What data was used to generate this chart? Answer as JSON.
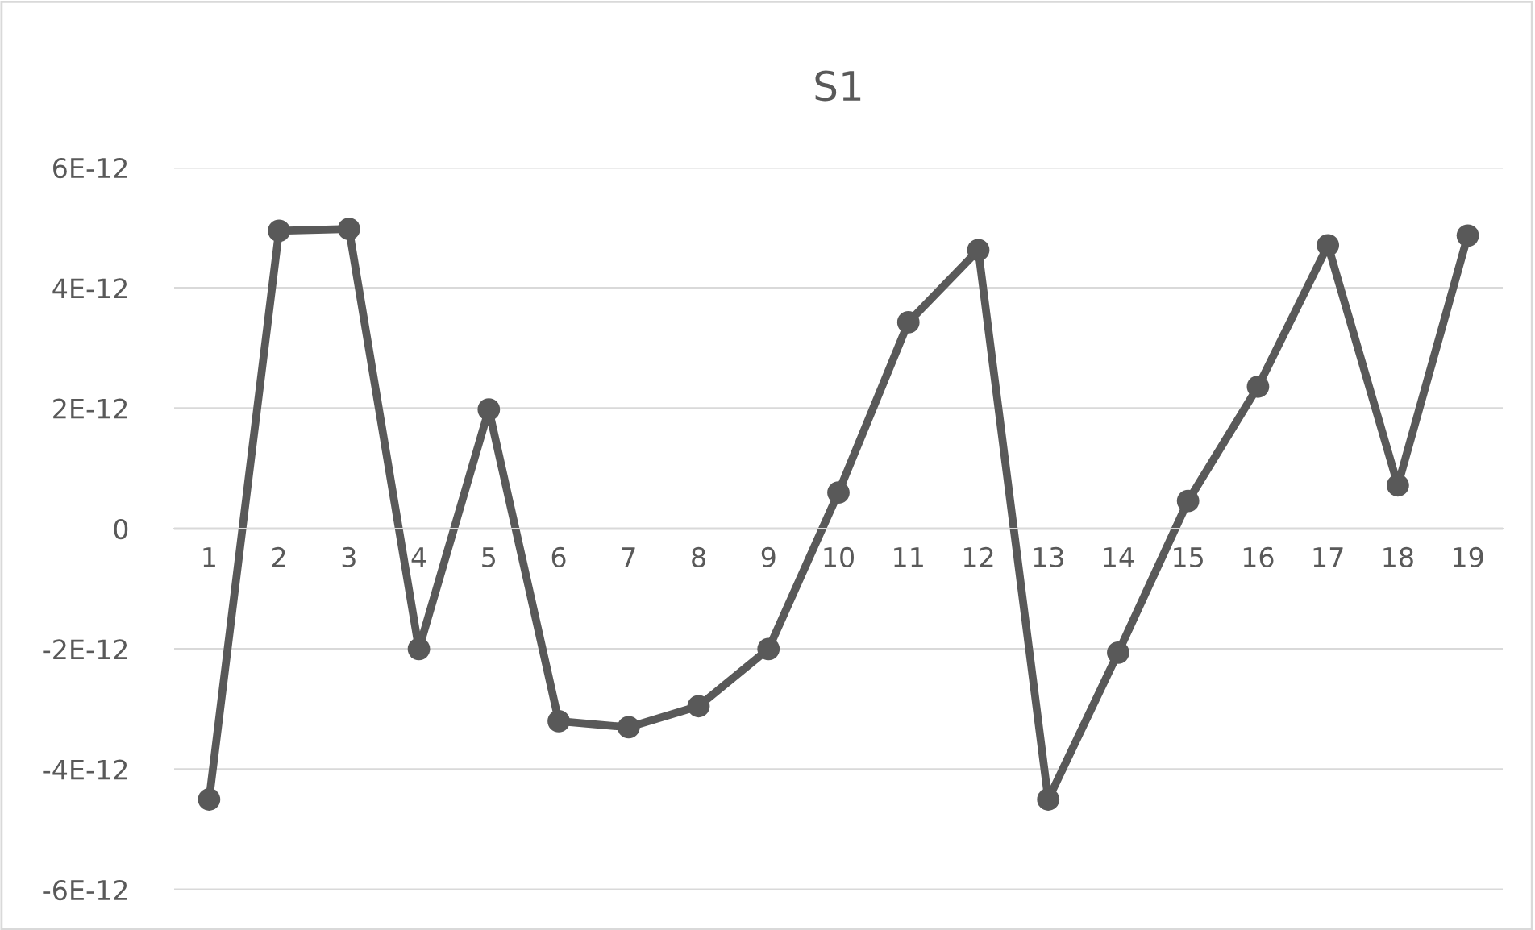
{
  "chart_data": {
    "type": "line",
    "title": "S1",
    "categories": [
      "1",
      "2",
      "3",
      "4",
      "5",
      "6",
      "7",
      "8",
      "9",
      "10",
      "11",
      "12",
      "13",
      "14",
      "15",
      "16",
      "17",
      "18",
      "19"
    ],
    "series": [
      {
        "color": "#595959",
        "values": [
          -4.5e-12,
          4.95e-12,
          4.98e-12,
          -2e-12,
          1.98e-12,
          -3.2e-12,
          -3.3e-12,
          -2.95e-12,
          -2e-12,
          6e-13,
          3.43e-12,
          4.63e-12,
          -4.5e-12,
          -2.06e-12,
          4.6e-13,
          2.36e-12,
          4.71e-12,
          7.2e-13,
          4.87e-12
        ]
      }
    ],
    "ylim": [
      -6e-12,
      6e-12
    ],
    "yticks": [
      {
        "value": -6e-12,
        "label": "-6E-12"
      },
      {
        "value": -4e-12,
        "label": "-4E-12"
      },
      {
        "value": -2e-12,
        "label": "-2E-12"
      },
      {
        "value": 0,
        "label": "0"
      },
      {
        "value": 2e-12,
        "label": "2E-12"
      },
      {
        "value": 4e-12,
        "label": "4E-12"
      },
      {
        "value": 6e-12,
        "label": "6E-12"
      }
    ],
    "grid": "y",
    "marker": "circle",
    "line_style": "solid"
  }
}
